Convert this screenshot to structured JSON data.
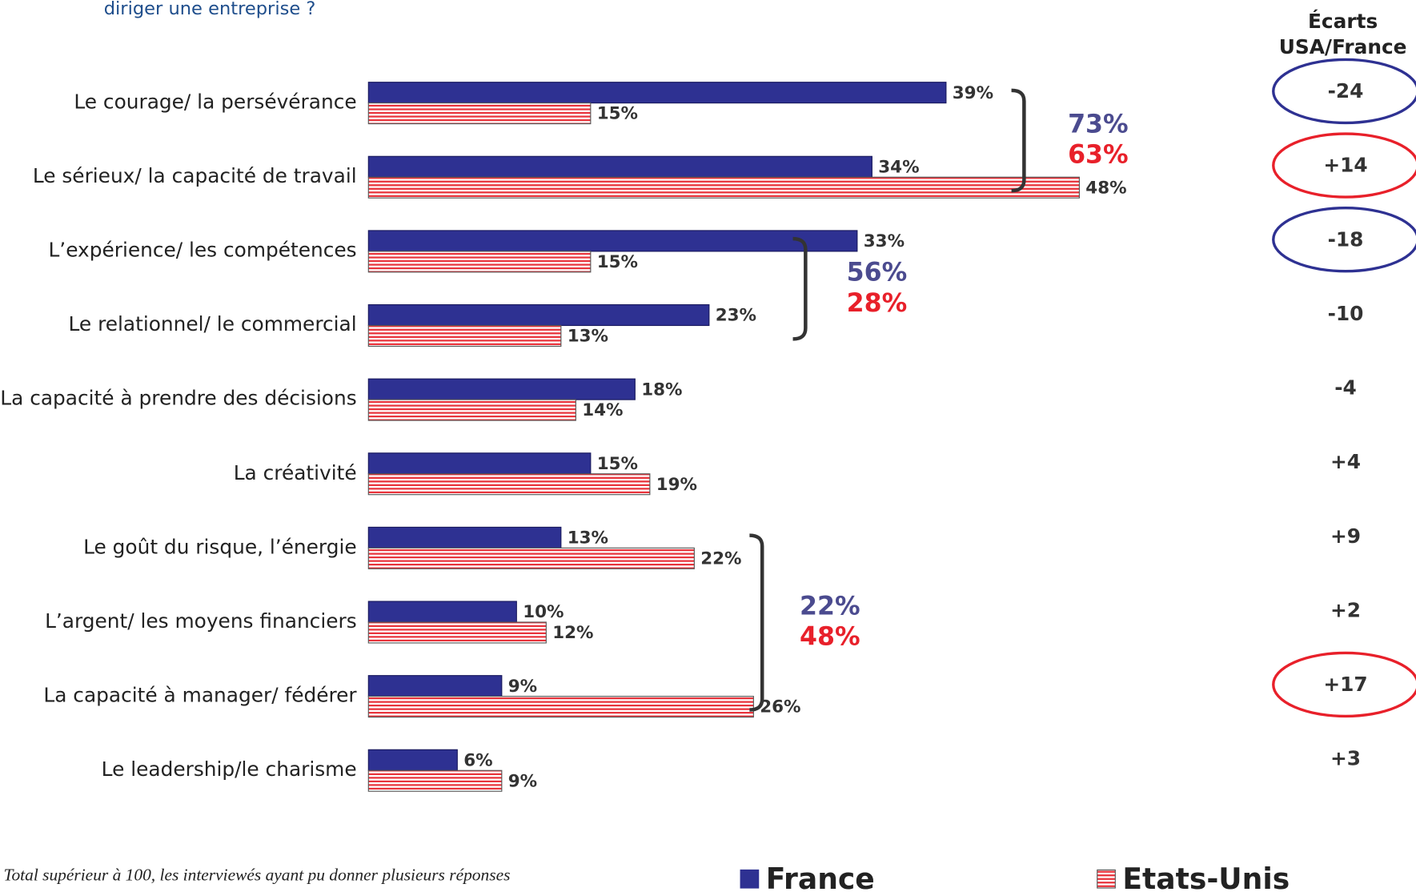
{
  "chart_data": {
    "type": "bar",
    "orientation": "horizontal",
    "subtitle": "diriger une entreprise ?",
    "categories": [
      "Le courage/ la persévérance",
      "Le sérieux/ la capacité de travail",
      "L’expérience/ les compétences",
      "Le relationnel/ le commercial",
      "La capacité à prendre des décisions",
      "La créativité",
      "Le goût du risque, l’énergie",
      "L’argent/ les moyens financiers",
      "La capacité à manager/ fédérer",
      "Le leadership/le charisme"
    ],
    "series": [
      {
        "name": "France",
        "color": "#2e3192",
        "values": [
          39,
          34,
          33,
          23,
          18,
          15,
          13,
          10,
          9,
          6
        ],
        "value_labels": [
          "39%",
          "34%",
          "33%",
          "23%",
          "18%",
          "15%",
          "13%",
          "10%",
          "9%",
          "6%"
        ]
      },
      {
        "name": "Etats-Unis",
        "color": "#e8343c",
        "pattern": "stripes",
        "values": [
          15,
          48,
          15,
          13,
          14,
          19,
          22,
          12,
          26,
          9
        ],
        "value_labels": [
          "15%",
          "48%",
          "15%",
          "13%",
          "14%",
          "19%",
          "22%",
          "12%",
          "26%",
          "9%"
        ]
      }
    ],
    "xlim": [
      0,
      50
    ],
    "groups": [
      {
        "values": [
          73,
          63
        ],
        "value_labels": [
          "73%",
          "63%"
        ]
      },
      {
        "values": [
          56,
          28
        ],
        "value_labels": [
          "56%",
          "28%"
        ]
      },
      {
        "values": [
          22,
          48
        ],
        "value_labels": [
          "22%",
          "48%"
        ]
      }
    ],
    "differences": {
      "header": [
        "Écarts",
        "USA/France"
      ],
      "values": [
        -24,
        14,
        -18,
        -10,
        -4,
        4,
        9,
        2,
        17,
        3
      ],
      "value_labels": [
        "-24",
        "+14",
        "-18",
        "-10",
        "-4",
        "+4",
        "+9",
        "+2",
        "+17",
        "+3"
      ],
      "circle_colors": [
        "#2e3192",
        "#e8202a",
        "#2e3192",
        null,
        null,
        null,
        null,
        null,
        "#e8202a",
        null
      ]
    },
    "footnote": "Total supérieur à 100, les interviewés ayant pu donner plusieurs réponses",
    "legend": "bottom"
  }
}
